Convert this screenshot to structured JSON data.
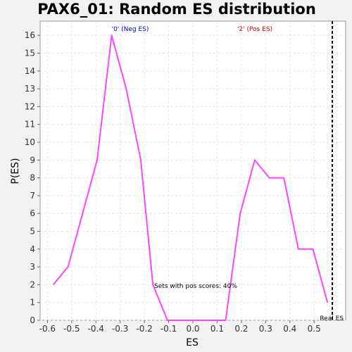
{
  "chart_data": {
    "type": "line",
    "title": "PAX6_01: Random ES distribution",
    "xlabel": "ES",
    "ylabel": "P(ES)",
    "xlim": [
      -0.63,
      0.63
    ],
    "ylim": [
      0,
      16.8
    ],
    "x_ticks": [
      "-0.6",
      "-0.5",
      "-0.4",
      "-0.3",
      "-0.2",
      "-0.1",
      "0.0",
      "0.1",
      "0.2",
      "0.3",
      "0.4",
      "0.5"
    ],
    "x_tick_values": [
      -0.6,
      -0.5,
      -0.4,
      -0.3,
      -0.2,
      -0.1,
      0.0,
      0.1,
      0.2,
      0.3,
      0.4,
      0.5
    ],
    "y_ticks": [
      "0",
      "1",
      "2",
      "3",
      "4",
      "5",
      "6",
      "7",
      "8",
      "9",
      "10",
      "11",
      "12",
      "13",
      "14",
      "15",
      "16"
    ],
    "y_tick_values": [
      0,
      1,
      2,
      3,
      4,
      5,
      6,
      7,
      8,
      9,
      10,
      11,
      12,
      13,
      14,
      15,
      16
    ],
    "grid": true,
    "series": [
      {
        "color": "#ff44ff",
        "x": [
          -0.576,
          -0.515,
          -0.455,
          -0.395,
          -0.335,
          -0.275,
          -0.215,
          -0.165,
          -0.105,
          -0.045,
          0.015,
          0.075,
          0.135,
          0.195,
          0.255,
          0.315,
          0.375,
          0.435,
          0.495,
          0.555
        ],
        "y": [
          2,
          3,
          6,
          9,
          16,
          13,
          9,
          2,
          0,
          0,
          0,
          0,
          0,
          6,
          9,
          8,
          8,
          4,
          4,
          1
        ]
      }
    ],
    "real_es": 0.575,
    "annotations": {
      "neg_label": "'0' (Neg ES)",
      "pos_label": "'2' (Pos ES)",
      "pos_scores": "Sets with pos scores: 40%",
      "real_es_label": "Real ES"
    },
    "colors": {
      "neg_label": "#0000cc",
      "pos_label": "#cc0000",
      "line": "#ff44ff",
      "grid": "#e6e6e6",
      "plot_bg": "#ffffff",
      "page_bg": "#f2f2f2"
    }
  }
}
